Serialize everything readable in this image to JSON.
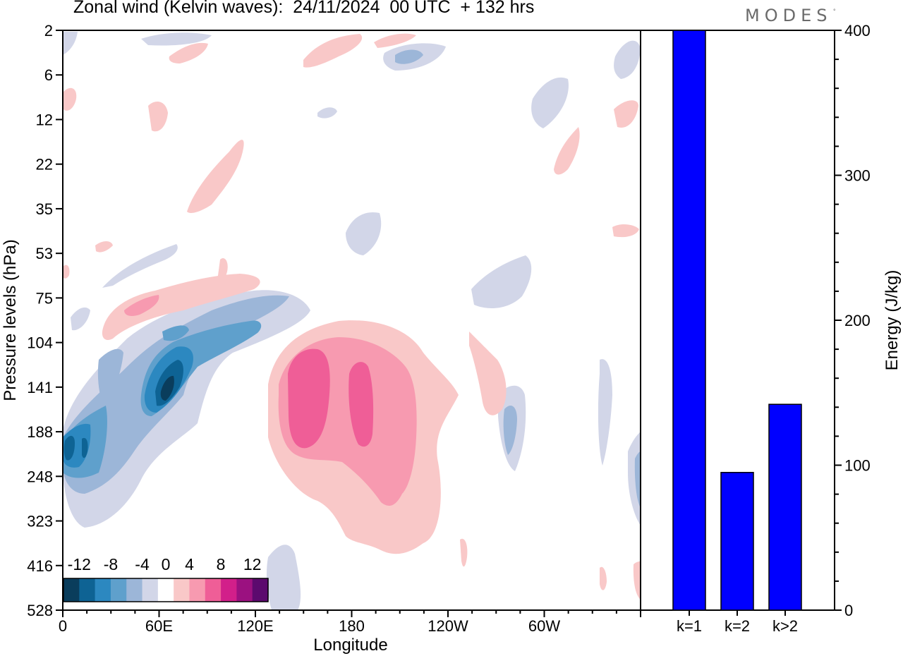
{
  "title": "Zonal wind (Kelvin waves):  24/11/2024  00 UTC  + 132 hrs",
  "brand": "MODES",
  "brand_mark": "°",
  "chart_data": [
    {
      "type": "heatmap",
      "title": "Zonal wind (Kelvin waves):  24/11/2024  00 UTC  + 132 hrs",
      "xlabel": "Longitude",
      "ylabel": "Pressure levels (hPa)",
      "x_ticks": [
        "0",
        "60E",
        "120E",
        "180",
        "120W",
        "60W"
      ],
      "y_ticks": [
        "2",
        "6",
        "12",
        "22",
        "35",
        "53",
        "75",
        "104",
        "141",
        "188",
        "248",
        "323",
        "416",
        "528"
      ],
      "y_scale": "reversed (top 2 hPa, bottom 528 hPa)",
      "colorbar": {
        "labels": [
          "-12",
          "-8",
          "-4",
          "0",
          "4",
          "8",
          "12"
        ],
        "levels": [
          -14,
          -12,
          -10,
          -8,
          -6,
          -4,
          -2,
          2,
          4,
          6,
          8,
          10,
          12,
          14
        ],
        "colors": [
          "#0a3d5c",
          "#0e6394",
          "#2c88c0",
          "#5fa0cc",
          "#9cb6d8",
          "#d2d6e8",
          "#ffffff",
          "#f9c8c8",
          "#f79ab0",
          "#ef5e97",
          "#d21f8a",
          "#9b1180",
          "#5c0a6e"
        ]
      },
      "features": [
        {
          "kind": "easterly",
          "longitude": 70,
          "pressure": 141,
          "approx_min": -13
        },
        {
          "kind": "easterly",
          "longitude": 3,
          "pressure": 218,
          "approx_min": -12
        },
        {
          "kind": "westerly",
          "longitude": 153,
          "pressure": 160,
          "approx_max": 8
        },
        {
          "kind": "westerly",
          "longitude": 182,
          "pressure": 170,
          "approx_max": 8
        },
        {
          "kind": "westerly",
          "longitude": 40,
          "pressure": 88,
          "approx_max": 6
        }
      ]
    },
    {
      "type": "bar",
      "categories": [
        "k=1",
        "k=2",
        "k>2"
      ],
      "values": [
        400,
        95,
        142
      ],
      "ylabel": "Energy (J/kg)",
      "ylim": [
        0,
        400
      ],
      "y_ticks": [
        "0",
        "100",
        "200",
        "300",
        "400"
      ],
      "bar_color": "#0000ff"
    }
  ]
}
